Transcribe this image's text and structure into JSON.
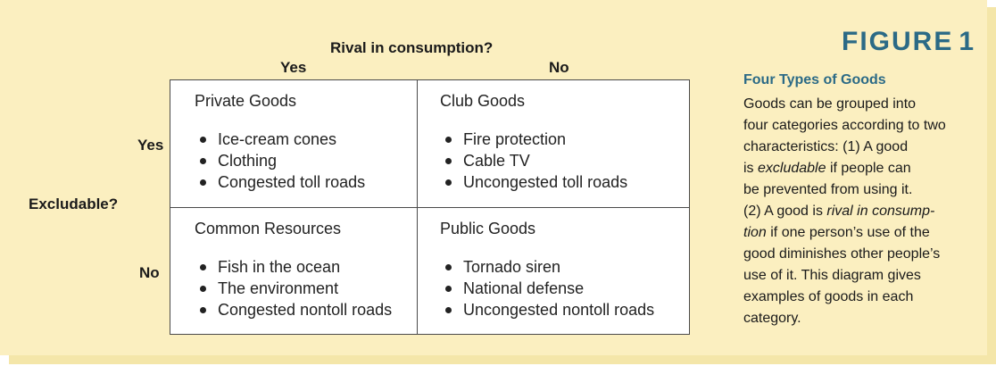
{
  "diagram": {
    "rival_title": "Rival in consumption?",
    "col_yes": "Yes",
    "col_no": "No",
    "excludable_title": "Excludable?",
    "row_yes": "Yes",
    "row_no": "No",
    "cells": {
      "top_left": {
        "title": "Private Goods",
        "items": [
          "Ice-cream cones",
          "Clothing",
          "Congested toll roads"
        ]
      },
      "top_right": {
        "title": "Club Goods",
        "items": [
          "Fire protection",
          "Cable TV",
          "Uncongested toll roads"
        ]
      },
      "bottom_left": {
        "title": "Common Resources",
        "items": [
          "Fish in the ocean",
          "The environment",
          "Congested nontoll roads"
        ]
      },
      "bottom_right": {
        "title": "Public Goods",
        "items": [
          "Tornado siren",
          "National defense",
          "Uncongested nontoll roads"
        ]
      }
    }
  },
  "figure": {
    "label": "FIGURE",
    "number": "1",
    "caption_title": "Four Types of Goods",
    "caption_lines": {
      "l1": "Goods can be grouped into",
      "l2": "four categories according to two",
      "l3": "characteristics: (1) A good",
      "l4_pre": "is ",
      "l4_em": "excludable",
      "l4_post": " if people can",
      "l5": "be prevented from using it.",
      "l6_pre": "(2) A good is ",
      "l6_em": "rival in consump-",
      "l7_em": "tion",
      "l7_post": " if one person’s use of the",
      "l8": "good diminishes other people’s",
      "l9": "use of it. This diagram gives",
      "l10": "examples of goods in each",
      "l11": "category."
    }
  },
  "colors": {
    "panel_background": "#fbefc0",
    "accent_blue": "#2b6a86",
    "grid_border": "#4a4a4a"
  }
}
